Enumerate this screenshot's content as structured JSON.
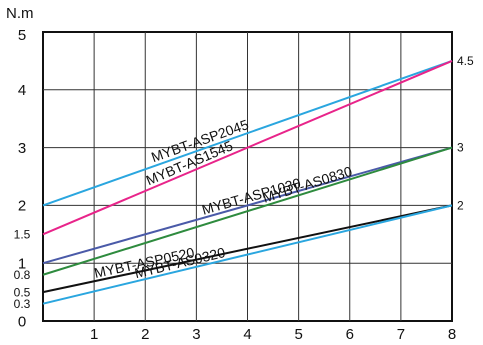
{
  "chart_data": {
    "type": "line",
    "ylabel": "N.m",
    "xlim": [
      0,
      8
    ],
    "ylim": [
      0,
      5
    ],
    "grid": true,
    "x_ticks": [
      "1",
      "2",
      "3",
      "4",
      "5",
      "6",
      "7",
      "8"
    ],
    "y_ticks_left": [
      "5",
      "4",
      "3",
      "2",
      "1.5",
      "1",
      "0.8",
      "0.5",
      "0.3",
      "0"
    ],
    "y_ticks_right": [
      "4.5",
      "3",
      "2"
    ],
    "series": [
      {
        "name": "MYBT-ASP2045",
        "color": "#2aa6df",
        "x": [
          0,
          8
        ],
        "y": [
          2,
          4.5
        ]
      },
      {
        "name": "MYBT-AS1545",
        "color": "#e8248a",
        "x": [
          0,
          8
        ],
        "y": [
          1.5,
          4.5
        ]
      },
      {
        "name": "MYBT-ASP1030",
        "color": "#4a5aa8",
        "x": [
          0,
          8
        ],
        "y": [
          1,
          3
        ]
      },
      {
        "name": "MYBT-AS0830",
        "color": "#2e8b3e",
        "x": [
          0,
          8
        ],
        "y": [
          0.8,
          3
        ]
      },
      {
        "name": "MYBT-ASP0520",
        "color": "#111111",
        "x": [
          0,
          8
        ],
        "y": [
          0.5,
          2
        ]
      },
      {
        "name": "MYBT-AS0320",
        "color": "#2aa6df",
        "x": [
          0,
          8
        ],
        "y": [
          0.3,
          2
        ]
      }
    ]
  }
}
